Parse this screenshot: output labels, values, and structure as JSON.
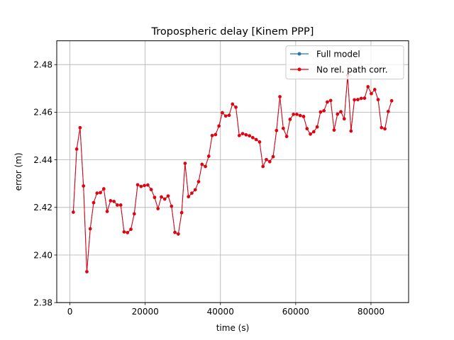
{
  "chart_data": {
    "type": "line",
    "title": "Tropospheric delay [Kinem PPP]",
    "xlabel": "time (s)",
    "ylabel": "error (m)",
    "xlim": [
      -3500,
      90000
    ],
    "ylim": [
      2.38,
      2.49
    ],
    "xticks": [
      0,
      20000,
      40000,
      60000,
      80000
    ],
    "xtick_labels": [
      "0",
      "20000",
      "40000",
      "60000",
      "80000"
    ],
    "yticks": [
      2.38,
      2.4,
      2.42,
      2.44,
      2.46,
      2.48
    ],
    "ytick_labels": [
      "2.38",
      "2.40",
      "2.42",
      "2.44",
      "2.46",
      "2.48"
    ],
    "grid": true,
    "legend_position": "top-right",
    "series": [
      {
        "name": "Full model",
        "color": "#1f77b4",
        "marker": "circle",
        "x": [
          900,
          1800,
          2700,
          3600,
          4500,
          5400,
          6300,
          7200,
          8100,
          9000,
          9900,
          10800,
          11700,
          12600,
          13500,
          14400,
          15300,
          16200,
          17100,
          18000,
          18900,
          19800,
          20700,
          21600,
          22500,
          23400,
          24300,
          25200,
          26100,
          27000,
          27900,
          28800,
          29700,
          30600,
          31500,
          32400,
          33300,
          34200,
          35100,
          36000,
          36900,
          37800,
          38700,
          39600,
          40500,
          41400,
          42300,
          43200,
          44100,
          45000,
          45900,
          46800,
          47700,
          48600,
          49500,
          50400,
          51300,
          52200,
          53100,
          54000,
          54900,
          55800,
          56700,
          57600,
          58500,
          59400,
          60300,
          61200,
          62100,
          63000,
          63900,
          64800,
          65700,
          66600,
          67500,
          68400,
          69300,
          70200,
          71100,
          72000,
          72900,
          73800,
          74700,
          75600,
          76500,
          77400,
          78300,
          79200,
          80100,
          81000,
          81900,
          82800,
          83700,
          84600,
          85500
        ],
        "y": [
          2.418,
          2.4445,
          2.4535,
          2.429,
          2.393,
          2.411,
          2.422,
          2.426,
          2.4262,
          2.4278,
          2.4183,
          2.4228,
          2.4225,
          2.421,
          2.421,
          2.4097,
          2.4094,
          2.4108,
          2.4173,
          2.4295,
          2.4288,
          2.4292,
          2.4294,
          2.4275,
          2.4242,
          2.4195,
          2.4244,
          2.4235,
          2.4248,
          2.4205,
          2.4095,
          2.4088,
          2.4178,
          2.4385,
          2.4245,
          2.426,
          2.4274,
          2.4308,
          2.4381,
          2.4372,
          2.4415,
          2.4502,
          2.4506,
          2.4542,
          2.4598,
          2.4584,
          2.4587,
          2.4634,
          2.4621,
          2.4502,
          2.451,
          2.4505,
          2.4501,
          2.4493,
          2.4485,
          2.4475,
          2.4372,
          2.4401,
          2.4392,
          2.4413,
          2.4523,
          2.4665,
          2.4532,
          2.4498,
          2.457,
          2.4591,
          2.4591,
          2.4586,
          2.4582,
          2.4531,
          2.4508,
          2.4518,
          2.4538,
          2.4601,
          2.4606,
          2.4643,
          2.4649,
          2.4525,
          2.4592,
          2.4602,
          2.4572,
          2.4755,
          2.4521,
          2.4652,
          2.4653,
          2.4658,
          2.4659,
          2.4707,
          2.4678,
          2.4695,
          2.4653,
          2.4535,
          2.453,
          2.4603,
          2.4648
        ]
      },
      {
        "name": "No rel. path corr.",
        "color": "#e8000b",
        "marker": "circle",
        "x": [
          900,
          1800,
          2700,
          3600,
          4500,
          5400,
          6300,
          7200,
          8100,
          9000,
          9900,
          10800,
          11700,
          12600,
          13500,
          14400,
          15300,
          16200,
          17100,
          18000,
          18900,
          19800,
          20700,
          21600,
          22500,
          23400,
          24300,
          25200,
          26100,
          27000,
          27900,
          28800,
          29700,
          30600,
          31500,
          32400,
          33300,
          34200,
          35100,
          36000,
          36900,
          37800,
          38700,
          39600,
          40500,
          41400,
          42300,
          43200,
          44100,
          45000,
          45900,
          46800,
          47700,
          48600,
          49500,
          50400,
          51300,
          52200,
          53100,
          54000,
          54900,
          55800,
          56700,
          57600,
          58500,
          59400,
          60300,
          61200,
          62100,
          63000,
          63900,
          64800,
          65700,
          66600,
          67500,
          68400,
          69300,
          70200,
          71100,
          72000,
          72900,
          73800,
          74700,
          75600,
          76500,
          77400,
          78300,
          79200,
          80100,
          81000,
          81900,
          82800,
          83700,
          84600,
          85500
        ],
        "y": [
          2.418,
          2.4445,
          2.4535,
          2.429,
          2.393,
          2.411,
          2.422,
          2.426,
          2.4262,
          2.4278,
          2.4183,
          2.4228,
          2.4225,
          2.421,
          2.421,
          2.4097,
          2.4094,
          2.4108,
          2.4173,
          2.4295,
          2.4288,
          2.4292,
          2.4294,
          2.4275,
          2.4242,
          2.4195,
          2.4244,
          2.4235,
          2.4248,
          2.4205,
          2.4095,
          2.4088,
          2.4178,
          2.4385,
          2.4245,
          2.426,
          2.4274,
          2.4308,
          2.4381,
          2.4372,
          2.4415,
          2.4502,
          2.4506,
          2.4542,
          2.4598,
          2.4584,
          2.4587,
          2.4634,
          2.4621,
          2.4502,
          2.451,
          2.4505,
          2.4501,
          2.4493,
          2.4485,
          2.4475,
          2.4372,
          2.4401,
          2.4392,
          2.4413,
          2.4523,
          2.4665,
          2.4532,
          2.4498,
          2.457,
          2.4591,
          2.4591,
          2.4586,
          2.4582,
          2.4531,
          2.4508,
          2.4518,
          2.4538,
          2.4601,
          2.4606,
          2.4643,
          2.4649,
          2.4525,
          2.4592,
          2.4602,
          2.4572,
          2.4755,
          2.4521,
          2.4652,
          2.4653,
          2.4658,
          2.4659,
          2.4707,
          2.4678,
          2.4695,
          2.4653,
          2.4535,
          2.453,
          2.4603,
          2.4648
        ]
      }
    ]
  }
}
